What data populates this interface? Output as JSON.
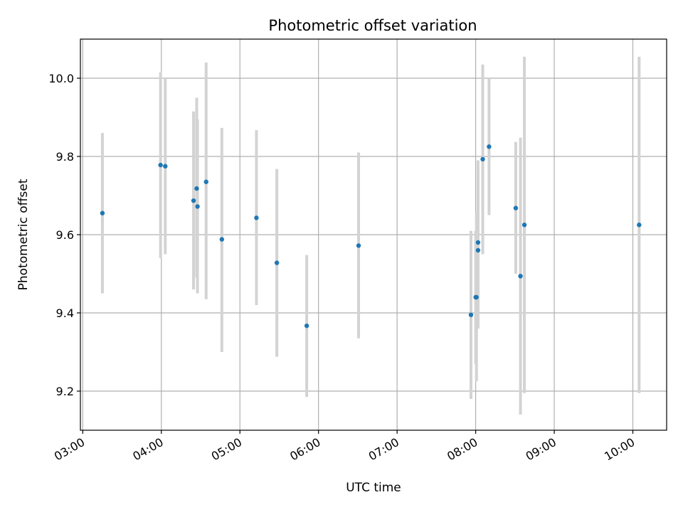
{
  "chart_data": {
    "type": "scatter",
    "title": "Photometric offset variation",
    "xlabel": "UTC time",
    "ylabel": "Photometric offset",
    "grid": true,
    "xlim": [
      2.97,
      10.43
    ],
    "ylim": [
      9.1,
      10.1
    ],
    "x_ticks": [
      {
        "value": 3,
        "label": "03:00"
      },
      {
        "value": 4,
        "label": "04:00"
      },
      {
        "value": 5,
        "label": "05:00"
      },
      {
        "value": 6,
        "label": "06:00"
      },
      {
        "value": 7,
        "label": "07:00"
      },
      {
        "value": 8,
        "label": "08:00"
      },
      {
        "value": 9,
        "label": "09:00"
      },
      {
        "value": 10,
        "label": "10:00"
      }
    ],
    "y_ticks": [
      {
        "value": 9.2,
        "label": "9.2"
      },
      {
        "value": 9.4,
        "label": "9.4"
      },
      {
        "value": 9.6,
        "label": "9.6"
      },
      {
        "value": 9.8,
        "label": "9.8"
      },
      {
        "value": 10.0,
        "label": "10.0"
      }
    ],
    "series": [
      {
        "marker_color": "#1f77b4",
        "error_color": "#d3d3d3",
        "points": [
          {
            "x": 3.25,
            "y": 9.655,
            "err_low": 9.45,
            "err_high": 9.86
          },
          {
            "x": 3.99,
            "y": 9.778,
            "err_low": 9.54,
            "err_high": 10.015
          },
          {
            "x": 4.05,
            "y": 9.775,
            "err_low": 9.55,
            "err_high": 10.0
          },
          {
            "x": 4.41,
            "y": 9.687,
            "err_low": 9.46,
            "err_high": 9.915
          },
          {
            "x": 4.45,
            "y": 9.718,
            "err_low": 9.49,
            "err_high": 9.95
          },
          {
            "x": 4.46,
            "y": 9.672,
            "err_low": 9.45,
            "err_high": 9.895
          },
          {
            "x": 4.57,
            "y": 9.735,
            "err_low": 9.435,
            "err_high": 10.04
          },
          {
            "x": 4.77,
            "y": 9.588,
            "err_low": 9.3,
            "err_high": 9.873
          },
          {
            "x": 5.21,
            "y": 9.643,
            "err_low": 9.42,
            "err_high": 9.867
          },
          {
            "x": 5.47,
            "y": 9.528,
            "err_low": 9.288,
            "err_high": 9.768
          },
          {
            "x": 5.85,
            "y": 9.367,
            "err_low": 9.185,
            "err_high": 9.548
          },
          {
            "x": 6.51,
            "y": 9.572,
            "err_low": 9.335,
            "err_high": 9.81
          },
          {
            "x": 7.94,
            "y": 9.395,
            "err_low": 9.18,
            "err_high": 9.61
          },
          {
            "x": 8.0,
            "y": 9.44,
            "err_low": 9.27,
            "err_high": 9.61
          },
          {
            "x": 8.01,
            "y": 9.44,
            "err_low": 9.225,
            "err_high": 9.655
          },
          {
            "x": 8.03,
            "y": 9.58,
            "err_low": 9.37,
            "err_high": 9.79
          },
          {
            "x": 8.03,
            "y": 9.56,
            "err_low": 9.36,
            "err_high": 9.76
          },
          {
            "x": 8.09,
            "y": 9.793,
            "err_low": 9.55,
            "err_high": 10.035
          },
          {
            "x": 8.17,
            "y": 9.825,
            "err_low": 9.65,
            "err_high": 10.0
          },
          {
            "x": 8.51,
            "y": 9.668,
            "err_low": 9.5,
            "err_high": 9.837
          },
          {
            "x": 8.57,
            "y": 9.494,
            "err_low": 9.14,
            "err_high": 9.848
          },
          {
            "x": 8.62,
            "y": 9.625,
            "err_low": 9.195,
            "err_high": 10.055
          },
          {
            "x": 10.08,
            "y": 9.625,
            "err_low": 9.195,
            "err_high": 10.055
          }
        ]
      }
    ]
  }
}
